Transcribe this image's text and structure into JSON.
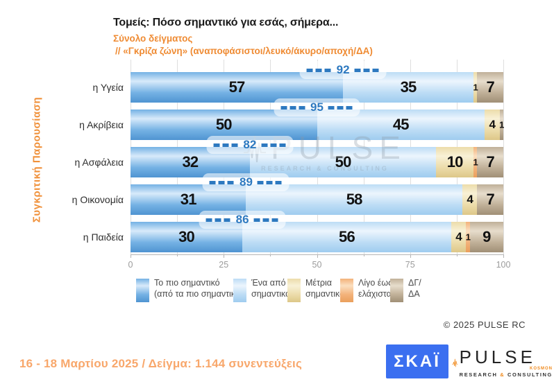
{
  "header": {
    "title": "Τομείς: Πόσο σημαντικό για εσάς, σήμερα...",
    "subtitle1": "Σύνολο δείγματος",
    "subtitle2": " // «Γκρίζα ζώνη» (αναποφάσιστοι/λευκό/άκυρο/αποχή/ΔΑ)",
    "side_label": "Συγκριτική  Παρουσίαση"
  },
  "chart_data": {
    "type": "bar",
    "orientation": "horizontal",
    "stacked": true,
    "title": "Τομείς: Πόσο σημαντικό για εσάς, σήμερα...",
    "categories": [
      "η Υγεία",
      "η Ακρίβεια",
      "η Ασφάλεια",
      "η Οικονομία",
      "η Παιδεία"
    ],
    "series": [
      {
        "name": "Το πιο σημαντικό (από τα πιο σημαντικά)",
        "key": "most-important",
        "values": [
          57,
          50,
          32,
          31,
          30
        ],
        "color": "#74b1e4",
        "color_hi": "#d8eafa",
        "color_lo": "#4f94d1"
      },
      {
        "name": "Ένα από τα σημαντικά",
        "key": "one-of-important",
        "values": [
          35,
          45,
          50,
          58,
          56
        ],
        "color": "#bcdcf5",
        "color_hi": "#ecf5fd",
        "color_lo": "#9fccef"
      },
      {
        "name": "Μέτρια σημαντικό",
        "key": "moderately-important",
        "values": [
          1,
          4,
          10,
          4,
          4
        ],
        "color": "#ecdcaa",
        "color_hi": "#f8f1d6",
        "color_lo": "#ddc788"
      },
      {
        "name": "Λίγο έως ελάχιστα",
        "key": "little-to-least",
        "values": [
          0,
          0,
          1,
          0,
          1
        ],
        "color": "#f3b27a",
        "color_hi": "#fbdfc0",
        "color_lo": "#ea9f5c"
      },
      {
        "name": "ΔΓ/ΔΑ",
        "key": "dk-na",
        "values": [
          7,
          1,
          7,
          7,
          9
        ],
        "color": "#c0b098",
        "color_hi": "#e7ddcc",
        "color_lo": "#a08f76"
      }
    ],
    "sum_badges": [
      92,
      95,
      82,
      89,
      86
    ],
    "x_ticks": [
      0,
      25,
      50,
      75,
      100
    ],
    "minor_tick_step": 12.5,
    "xlim": [
      0,
      100
    ],
    "grid": true,
    "legend_position": "bottom",
    "badge_color": "#2d79c0"
  },
  "legend": {
    "items": [
      {
        "lines": [
          "Το πιο σημαντικό",
          "(από τα πιο σημαντικά)"
        ]
      },
      {
        "lines": [
          "Ένα από τα",
          "σημαντικά"
        ]
      },
      {
        "lines": [
          "Μέτρια",
          "σημαντικό"
        ]
      },
      {
        "lines": [
          "Λίγο έως",
          "ελάχιστα"
        ]
      },
      {
        "lines": [
          "ΔΓ/",
          "ΔΑ"
        ]
      }
    ]
  },
  "watermark": {
    "name": "PULSE",
    "sub": "RESEARCH & CONSULTING"
  },
  "copyright": "©  2025  PULSE RC",
  "logos": {
    "skai": {
      "text": "ΣΚΑΪ",
      "bg_color": "#3b6ff0"
    },
    "pulse": {
      "name": "PULSE",
      "tagline": "KOSMON",
      "sub1": "RESEARCH",
      "amp": "&",
      "sub2": "CONSULTING",
      "accent_color": "#f08a1d"
    }
  },
  "footer": {
    "text": "16 - 18 Μαρτίου 2025  /  Δείγμα:  1.144 συνεντεύξεις"
  }
}
